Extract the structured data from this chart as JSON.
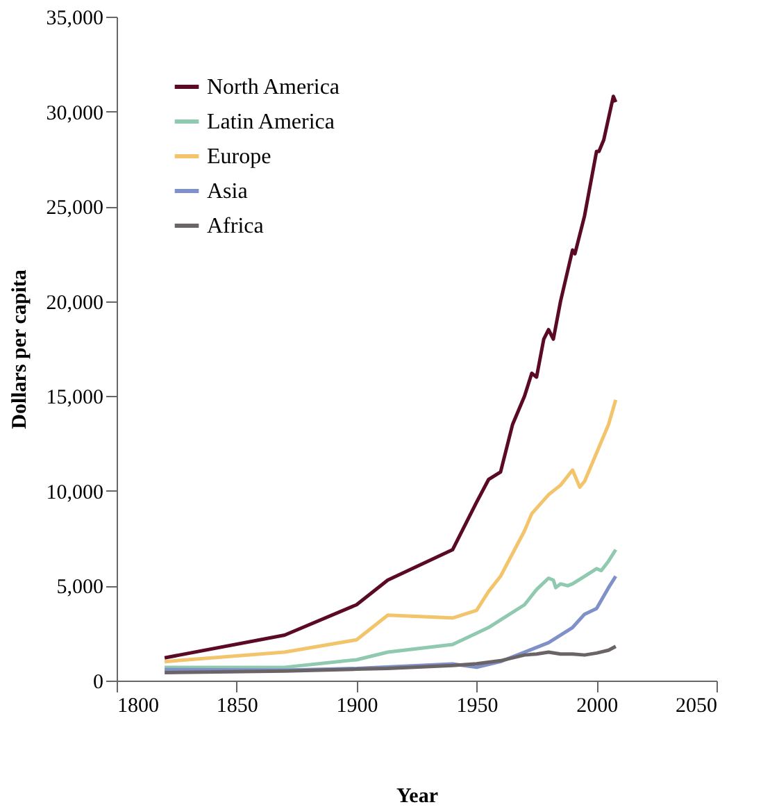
{
  "chart_data": {
    "type": "line",
    "xlabel": "Year",
    "ylabel": "Dollars per capita",
    "xlim": [
      1800,
      2050
    ],
    "xticks": [
      1800,
      1850,
      1900,
      1950,
      2000,
      2050
    ],
    "ylim": [
      0,
      35000
    ],
    "yticks": [
      0,
      {
        "value": 5000,
        "label": "5,000"
      },
      {
        "value": 10000,
        "label": "10,000"
      },
      {
        "value": 15000,
        "label": "15,000"
      },
      {
        "value": 20000,
        "label": "20,000"
      },
      {
        "value": 25000,
        "label": "25,000"
      },
      {
        "value": 30000,
        "label": "30,000"
      },
      {
        "value": 35000,
        "label": "35,000"
      }
    ],
    "grid": false,
    "legend": "top left",
    "marker": "none",
    "line_style": "solid",
    "series": [
      {
        "name": "North America",
        "color": "#5a0a24",
        "x": [
          1820,
          1870,
          1900,
          1913,
          1940,
          1950,
          1955,
          1960,
          1965,
          1970,
          1973,
          1975,
          1978,
          1980,
          1982,
          1985,
          1990,
          1991,
          1995,
          2000,
          2001,
          2003,
          2007,
          2008
        ],
        "values": [
          1200,
          2400,
          4000,
          5300,
          6900,
          9400,
          10600,
          11000,
          13500,
          15000,
          16200,
          16000,
          18000,
          18500,
          18000,
          20000,
          22700,
          22500,
          24500,
          27900,
          27900,
          28500,
          30800,
          30500
        ]
      },
      {
        "name": "Latin America",
        "color": "#8fc9b0",
        "x": [
          1820,
          1870,
          1900,
          1913,
          1940,
          1950,
          1955,
          1960,
          1970,
          1975,
          1980,
          1982,
          1983,
          1985,
          1988,
          1990,
          1995,
          2000,
          2002,
          2005,
          2008
        ],
        "values": [
          700,
          700,
          1100,
          1500,
          1900,
          2500,
          2800,
          3200,
          4000,
          4800,
          5400,
          5300,
          4900,
          5100,
          5000,
          5100,
          5500,
          5900,
          5800,
          6300,
          6900
        ]
      },
      {
        "name": "Europe",
        "color": "#f2c46b",
        "x": [
          1820,
          1870,
          1900,
          1913,
          1940,
          1950,
          1955,
          1960,
          1965,
          1970,
          1973,
          1980,
          1985,
          1990,
          1993,
          1995,
          2000,
          2005,
          2008
        ],
        "values": [
          1000,
          1500,
          2150,
          3450,
          3300,
          3700,
          4700,
          5500,
          6700,
          7900,
          8800,
          9800,
          10300,
          11100,
          10200,
          10500,
          12000,
          13500,
          14800
        ]
      },
      {
        "name": "Asia",
        "color": "#8090c8",
        "x": [
          1820,
          1870,
          1900,
          1940,
          1950,
          1960,
          1970,
          1980,
          1990,
          1995,
          2000,
          2005,
          2008
        ],
        "values": [
          580,
          550,
          640,
          880,
          700,
          1000,
          1500,
          2000,
          2800,
          3500,
          3800,
          4900,
          5500
        ]
      },
      {
        "name": "Africa",
        "color": "#6b6466",
        "x": [
          1820,
          1870,
          1900,
          1913,
          1940,
          1950,
          1960,
          1970,
          1975,
          1980,
          1985,
          1990,
          1995,
          2000,
          2005,
          2008
        ],
        "values": [
          420,
          500,
          600,
          640,
          800,
          890,
          1050,
          1350,
          1400,
          1500,
          1400,
          1400,
          1350,
          1450,
          1600,
          1800
        ]
      }
    ]
  }
}
